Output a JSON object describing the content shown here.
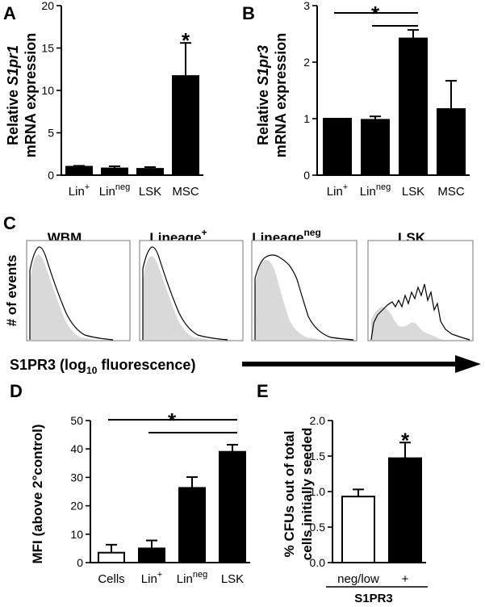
{
  "panels": {
    "A": {
      "label": "A",
      "ylabel_line1_prefix": "Relative ",
      "ylabel_gene": "S1pr1",
      "ylabel_line2": "mRNA expression"
    },
    "B": {
      "label": "B",
      "ylabel_line1_prefix": "Relative ",
      "ylabel_gene": "S1pr3",
      "ylabel_line2": "mRNA expression"
    },
    "C": {
      "label": "C",
      "ylabel": "# of events",
      "xlabel_prefix": "S1PR3 (log",
      "xlabel_sub": "10",
      "xlabel_suffix": " fluorescence)",
      "histograms": [
        {
          "title": "WBM",
          "sup": ""
        },
        {
          "title": "Lineage",
          "sup": "+"
        },
        {
          "title": "Lineage",
          "sup": "neg"
        },
        {
          "title": "LSK",
          "sup": ""
        }
      ]
    },
    "D": {
      "label": "D",
      "ylabel": "MFI (above 2°control)"
    },
    "E": {
      "label": "E",
      "ylabel_line1": "% CFUs  out of total",
      "ylabel_line2": "cells initially seeded",
      "group_label": "S1PR3"
    }
  },
  "chart_data": [
    {
      "type": "bar",
      "panel": "A",
      "categories": [
        "Lin+",
        "Linneg",
        "LSK",
        "MSC"
      ],
      "tick_labels": [
        {
          "main": "Lin",
          "sup": "+"
        },
        {
          "main": "Lin",
          "sup": "neg"
        },
        {
          "main": "LSK",
          "sup": ""
        },
        {
          "main": "MSC",
          "sup": ""
        }
      ],
      "values": [
        1.0,
        0.8,
        0.75,
        11.7
      ],
      "errors": [
        0.1,
        0.25,
        0.2,
        3.9
      ],
      "fill": [
        "black",
        "black",
        "black",
        "black"
      ],
      "ylim": [
        0,
        20
      ],
      "yticks": [
        0,
        5,
        10,
        15,
        20
      ],
      "annotations": [
        {
          "text": "*",
          "category": 3
        }
      ]
    },
    {
      "type": "bar",
      "panel": "B",
      "categories": [
        "Lin+",
        "Linneg",
        "LSK",
        "MSC"
      ],
      "tick_labels": [
        {
          "main": "Lin",
          "sup": "+"
        },
        {
          "main": "Lin",
          "sup": "neg"
        },
        {
          "main": "LSK",
          "sup": ""
        },
        {
          "main": "MSC",
          "sup": ""
        }
      ],
      "values": [
        1.0,
        0.98,
        2.42,
        1.17
      ],
      "errors": [
        0.0,
        0.06,
        0.15,
        0.5
      ],
      "fill": [
        "black",
        "black",
        "black",
        "black"
      ],
      "ylim": [
        0,
        3
      ],
      "yticks": [
        0,
        1,
        2,
        3
      ],
      "annotations": [
        {
          "text": "*"
        }
      ],
      "comparison_lines": [
        {
          "from": 0,
          "to": 2,
          "level": 0
        },
        {
          "from": 1,
          "to": 2,
          "level": 1
        }
      ]
    },
    {
      "type": "bar",
      "panel": "D",
      "categories": [
        "Cells",
        "Lin+",
        "Linneg",
        "LSK"
      ],
      "tick_labels": [
        {
          "main": "Cells",
          "sup": ""
        },
        {
          "main": "Lin",
          "sup": "+"
        },
        {
          "main": "Lin",
          "sup": "neg"
        },
        {
          "main": "LSK",
          "sup": ""
        }
      ],
      "values": [
        3.5,
        5.0,
        26.3,
        39.0
      ],
      "errors": [
        2.8,
        2.8,
        3.8,
        2.5
      ],
      "fill": [
        "white",
        "black",
        "black",
        "black"
      ],
      "ylim": [
        0,
        50
      ],
      "yticks": [
        0,
        10,
        20,
        30,
        40,
        50
      ],
      "annotations": [
        {
          "text": "*"
        }
      ],
      "comparison_lines": [
        {
          "from": 0,
          "to": 3,
          "level": 0
        },
        {
          "from": 1,
          "to": 3,
          "level": 1
        }
      ]
    },
    {
      "type": "bar",
      "panel": "E",
      "categories": [
        "neg/low",
        "+"
      ],
      "tick_labels": [
        {
          "main": "neg/low",
          "sup": ""
        },
        {
          "main": "+",
          "sup": ""
        }
      ],
      "values": [
        0.93,
        1.47
      ],
      "errors": [
        0.1,
        0.22
      ],
      "fill": [
        "white",
        "black"
      ],
      "ylim": [
        0,
        2.0
      ],
      "yticks": [
        0.0,
        0.5,
        1.0,
        1.5,
        2.0
      ],
      "annotations": [
        {
          "text": "*",
          "category": 1
        }
      ]
    }
  ]
}
